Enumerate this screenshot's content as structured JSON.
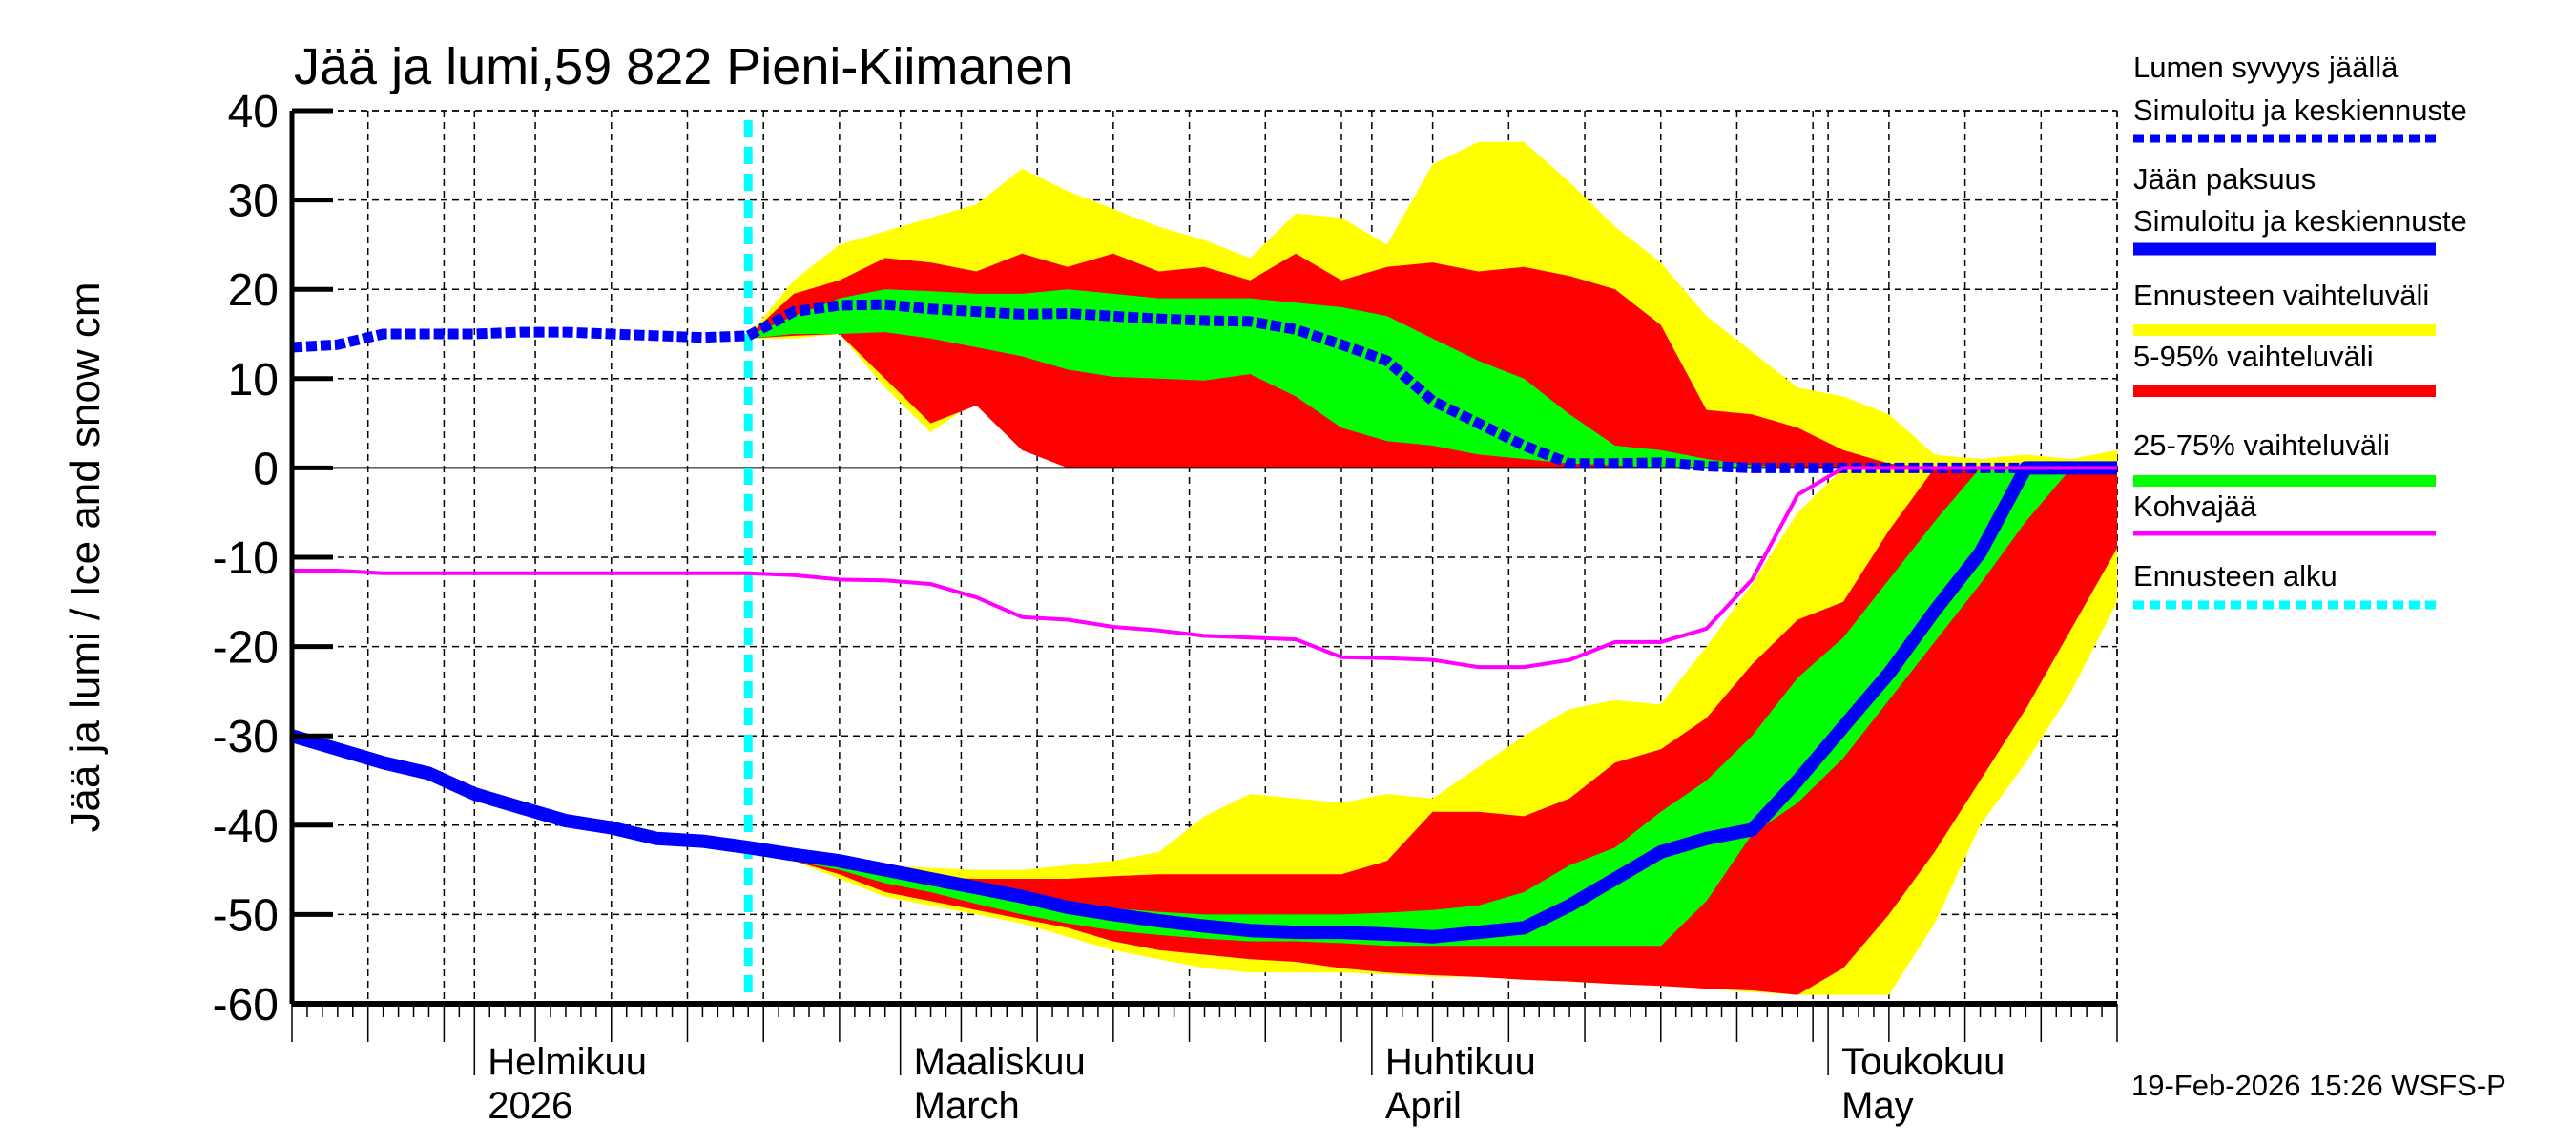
{
  "chart_data": {
    "type": "area",
    "title": "Jää ja lumi,59 822 Pieni-Kiimanen",
    "ylabel": "Jää ja lumi / Ice and snow    cm",
    "xlabel": "",
    "ylim": [
      -60,
      40
    ],
    "xlim": [
      "2026-01-20",
      "2026-05-20"
    ],
    "grid": true,
    "legend_position": "right",
    "y_ticks": [
      "40",
      "30",
      "20",
      "10",
      "0",
      "-10",
      "-20",
      "-30",
      "-40",
      "-50",
      "-60"
    ],
    "y_tick_values": [
      40,
      30,
      20,
      10,
      0,
      -10,
      -20,
      -30,
      -40,
      -50,
      -60
    ],
    "x_month_labels": [
      {
        "date": "2026-02-01",
        "line1": "Helmikuu",
        "line2": "2026"
      },
      {
        "date": "2026-03-01",
        "line1": "Maaliskuu",
        "line2": "March"
      },
      {
        "date": "2026-04-01",
        "line1": "Huhtikuu",
        "line2": "April"
      },
      {
        "date": "2026-05-01",
        "line1": "Toukokuu",
        "line2": "May"
      }
    ],
    "forecast_start": "2026-02-19",
    "timestamp": "19-Feb-2026 15:26 WSFS-P",
    "colors": {
      "snow": "#0000ff",
      "ice": "#0000ff",
      "kohva": "#ff00ff",
      "range_full": "#ffff00",
      "range_5_95": "#ff0000",
      "range_25_75": "#00ff00",
      "forecast_start": "#00ffff"
    },
    "dates": [
      "2026-01-20",
      "2026-01-23",
      "2026-01-26",
      "2026-01-29",
      "2026-02-01",
      "2026-02-04",
      "2026-02-07",
      "2026-02-10",
      "2026-02-13",
      "2026-02-16",
      "2026-02-19",
      "2026-02-22",
      "2026-02-25",
      "2026-02-28",
      "2026-03-03",
      "2026-03-06",
      "2026-03-09",
      "2026-03-12",
      "2026-03-15",
      "2026-03-18",
      "2026-03-21",
      "2026-03-24",
      "2026-03-27",
      "2026-03-30",
      "2026-04-02",
      "2026-04-05",
      "2026-04-08",
      "2026-04-11",
      "2026-04-14",
      "2026-04-17",
      "2026-04-20",
      "2026-04-23",
      "2026-04-26",
      "2026-04-29",
      "2026-05-02",
      "2026-05-05",
      "2026-05-08",
      "2026-05-11",
      "2026-05-14",
      "2026-05-17",
      "2026-05-20"
    ],
    "series": [
      {
        "name": "Lumen syvyys jäällä – Simuloitu ja keskiennuste",
        "key": "snow",
        "values": [
          13.5,
          13.8,
          15,
          15,
          15,
          15.2,
          15.2,
          15,
          14.8,
          14.6,
          14.8,
          17.5,
          18.2,
          18.3,
          17.8,
          17.5,
          17.2,
          17.3,
          17,
          16.7,
          16.5,
          16.4,
          15.5,
          13.8,
          12,
          7.5,
          5,
          2.5,
          0.5,
          0.5,
          0.6,
          0.2,
          0,
          0,
          0,
          0,
          0,
          0,
          0,
          0,
          0
        ]
      },
      {
        "name": "Jään paksuus – Simuloitu ja keskiennuste",
        "key": "ice",
        "values": [
          -30,
          -31.5,
          -33,
          -34.2,
          -36.5,
          -38,
          -39.5,
          -40.3,
          -41.5,
          -41.8,
          -42.5,
          -43.3,
          -44,
          -45,
          -46,
          -47,
          -48,
          -49.2,
          -50,
          -50.7,
          -51.3,
          -51.8,
          -52,
          -52,
          -52.2,
          -52.5,
          -52,
          -51.5,
          -49,
          -46,
          -43,
          -41.5,
          -40.5,
          -35,
          -29,
          -23,
          -16,
          -9.5,
          0,
          0,
          0
        ]
      },
      {
        "name": "Kohvajää",
        "key": "kohva",
        "values": [
          -11.5,
          -11.5,
          -11.8,
          -11.8,
          -11.8,
          -11.8,
          -11.8,
          -11.8,
          -11.8,
          -11.8,
          -11.8,
          -12,
          -12.5,
          -12.6,
          -13,
          -14.5,
          -16.7,
          -17,
          -17.8,
          -18.2,
          -18.8,
          -19,
          -19.2,
          -21.2,
          -21.3,
          -21.5,
          -22.3,
          -22.3,
          -21.5,
          -19.5,
          -19.5,
          -18,
          -12.5,
          -3,
          0,
          0,
          0,
          0,
          0,
          0,
          0
        ]
      }
    ],
    "bands": [
      {
        "name": "Ennusteen vaihteluväli (lumi)",
        "color_key": "range_full",
        "upper": [
          null,
          null,
          null,
          null,
          null,
          null,
          null,
          null,
          null,
          null,
          14.8,
          21,
          25,
          26.5,
          28,
          29.5,
          33.5,
          31,
          29,
          27,
          25.5,
          23.5,
          28.5,
          28,
          25,
          34,
          36.5,
          36.5,
          32,
          27,
          23,
          17,
          13,
          9,
          8,
          6,
          1.5,
          1,
          1.5,
          1,
          2
        ],
        "lower": [
          null,
          null,
          null,
          null,
          null,
          null,
          null,
          null,
          null,
          null,
          14.5,
          14.5,
          15,
          9,
          4,
          7.5,
          3,
          0,
          0,
          0,
          0,
          0,
          0,
          0,
          0,
          0,
          0,
          0,
          0,
          0,
          0,
          0,
          0,
          0,
          0,
          0,
          0,
          0,
          0,
          0,
          0
        ]
      },
      {
        "name": "5-95% vaihteluväli (lumi)",
        "color_key": "range_5_95",
        "upper": [
          null,
          null,
          null,
          null,
          null,
          null,
          null,
          null,
          null,
          null,
          14.8,
          19.5,
          21,
          23.5,
          23,
          22,
          24,
          22.5,
          24,
          22,
          22.5,
          21,
          24,
          21,
          22.5,
          23,
          22,
          22.5,
          21.5,
          20,
          16,
          6.5,
          6,
          4.5,
          2,
          0.5,
          0,
          0,
          0,
          0,
          0
        ],
        "lower": [
          null,
          null,
          null,
          null,
          null,
          null,
          null,
          null,
          null,
          null,
          14.5,
          14.8,
          15,
          10,
          5,
          7,
          2,
          0,
          0,
          0,
          0,
          0,
          0,
          0,
          0,
          0,
          0,
          0,
          0,
          0,
          0,
          0,
          0,
          0,
          0,
          0,
          0,
          0,
          0,
          0,
          0
        ]
      },
      {
        "name": "25-75% vaihteluväli (lumi)",
        "color_key": "range_25_75",
        "upper": [
          null,
          null,
          null,
          null,
          null,
          null,
          null,
          null,
          null,
          null,
          14.8,
          17,
          19,
          20,
          19.8,
          19.5,
          19.5,
          20,
          19.5,
          19,
          19,
          19,
          18.5,
          18,
          17,
          14.5,
          12,
          10,
          6,
          2.5,
          2,
          1,
          0.3,
          0,
          0,
          0,
          0,
          0,
          0,
          0,
          0
        ],
        "lower": [
          null,
          null,
          null,
          null,
          null,
          null,
          null,
          null,
          null,
          null,
          14.5,
          15,
          15,
          15.2,
          14.5,
          13.5,
          12.5,
          11,
          10.2,
          10,
          9.8,
          10.5,
          8,
          4.5,
          3,
          2.5,
          1.5,
          1,
          0.5,
          0.3,
          0,
          0,
          0,
          0,
          0,
          0,
          0,
          0,
          0,
          0,
          0
        ]
      },
      {
        "name": "Ennusteen vaihteluväli (jää)",
        "color_key": "range_full",
        "upper": [
          null,
          null,
          null,
          null,
          null,
          null,
          null,
          null,
          null,
          null,
          -42.5,
          -43.5,
          -44,
          -44.5,
          -44.8,
          -45,
          -45,
          -44.5,
          -44,
          -43,
          -39,
          -36.5,
          -37,
          -37.5,
          -36.5,
          -37,
          -33.5,
          -30,
          -27,
          -26,
          -26.5,
          -20,
          -13,
          -5,
          0,
          0,
          0,
          0,
          0,
          0,
          0
        ],
        "lower": [
          null,
          null,
          null,
          null,
          null,
          null,
          null,
          null,
          null,
          null,
          -42.5,
          -44,
          -46,
          -48,
          -49,
          -50,
          -51,
          -52.5,
          -54,
          -55,
          -56,
          -56.5,
          -56.5,
          -56.5,
          -56.7,
          -57,
          -57,
          -57.3,
          -57.5,
          -57.8,
          -58,
          -58.3,
          -58.7,
          -59,
          -59,
          -59,
          -51,
          -40,
          -33,
          -25,
          -15
        ]
      },
      {
        "name": "5-95% vaihteluväli (jää)",
        "color_key": "range_5_95",
        "upper": [
          null,
          null,
          null,
          null,
          null,
          null,
          null,
          null,
          null,
          null,
          -42.5,
          -43.5,
          -44.5,
          -45.3,
          -45.8,
          -46,
          -46,
          -46,
          -45.7,
          -45.5,
          -45.5,
          -45.5,
          -45.5,
          -45.5,
          -44,
          -38.5,
          -38.5,
          -39,
          -37,
          -33,
          -31.5,
          -28,
          -22,
          -17,
          -15,
          -7,
          0,
          0,
          0,
          0,
          0
        ],
        "lower": [
          null,
          null,
          null,
          null,
          null,
          null,
          null,
          null,
          null,
          null,
          -42.5,
          -44,
          -45.5,
          -47.5,
          -48.5,
          -49.5,
          -50.5,
          -51.5,
          -53,
          -54,
          -54.5,
          -55,
          -55.3,
          -56,
          -56.5,
          -56.8,
          -57,
          -57.3,
          -57.5,
          -57.8,
          -58,
          -58.3,
          -58.5,
          -59,
          -56,
          -50,
          -43,
          -35,
          -27,
          -18,
          -9
        ]
      },
      {
        "name": "25-75% vaihteluväli (jää)",
        "color_key": "range_25_75",
        "upper": [
          null,
          null,
          null,
          null,
          null,
          null,
          null,
          null,
          null,
          null,
          -42.5,
          -43.5,
          -44.3,
          -45.5,
          -46.5,
          -47.3,
          -48,
          -48.7,
          -49.3,
          -49.7,
          -50,
          -50,
          -50,
          -50,
          -49.8,
          -49.5,
          -49,
          -47.5,
          -44.5,
          -42.5,
          -38.5,
          -35,
          -30,
          -23.5,
          -19,
          -12.5,
          -6,
          0,
          0,
          0,
          0
        ],
        "lower": [
          null,
          null,
          null,
          null,
          null,
          null,
          null,
          null,
          null,
          null,
          -42.5,
          -44,
          -45,
          -46.5,
          -47.5,
          -48.8,
          -50,
          -51,
          -51.8,
          -52.3,
          -52.7,
          -53,
          -53,
          -53.2,
          -53.5,
          -53.5,
          -53.5,
          -53.5,
          -53.5,
          -53.5,
          -53.5,
          -48.5,
          -41,
          -37.5,
          -32.5,
          -26,
          -19.5,
          -13,
          -6,
          0,
          0
        ]
      }
    ],
    "legend": [
      {
        "line1": "Lumen syvyys jäällä",
        "line2": "Simuloitu ja keskiennuste",
        "style": "dotted",
        "color_key": "snow"
      },
      {
        "line1": "Jään paksuus",
        "line2": "Simuloitu ja keskiennuste",
        "style": "solid",
        "color_key": "ice"
      },
      {
        "line1": "Ennusteen vaihteluväli",
        "line2": "",
        "style": "band",
        "color_key": "range_full"
      },
      {
        "line1": "5-95% vaihteluväli",
        "line2": "",
        "style": "band",
        "color_key": "range_5_95"
      },
      {
        "line1": "25-75% vaihteluväli",
        "line2": "",
        "style": "band",
        "color_key": "range_25_75"
      },
      {
        "line1": "Kohvajää",
        "line2": "",
        "style": "thin",
        "color_key": "kohva"
      },
      {
        "line1": "Ennusteen alku",
        "line2": "",
        "style": "dotted",
        "color_key": "forecast_start"
      }
    ]
  }
}
